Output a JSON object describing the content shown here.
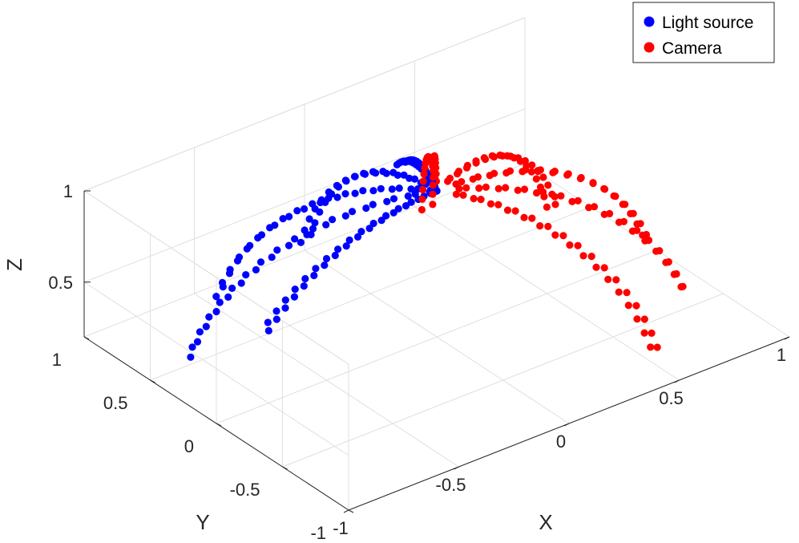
{
  "chart_data": {
    "type": "scatter",
    "projection": "3d",
    "xlabel": "X",
    "ylabel": "Y",
    "zlabel": "Z",
    "xlim": [
      -1,
      1
    ],
    "ylim": [
      -1,
      1
    ],
    "zlim": [
      0.2,
      1
    ],
    "xticks": [
      "-1",
      "-0.5",
      "0",
      "0.5",
      "1"
    ],
    "yticks": [
      "-1",
      "-0.5",
      "0",
      "0.5",
      "1"
    ],
    "zticks": [
      "0.5",
      "1"
    ],
    "grid": true,
    "legend_position": "top-right",
    "series": [
      {
        "name": "Light source",
        "color": "#0000ff",
        "description": "points on upper hemisphere, Y >= 0 side, Z from about 0.3 to 1",
        "arcs": [
          {
            "phi": 90,
            "theta_range": [
              0,
              72
            ]
          },
          {
            "phi": 120,
            "theta_range": [
              0,
              72
            ]
          },
          {
            "phi": 150,
            "theta_range": [
              0,
              72
            ]
          },
          {
            "phi": 70,
            "theta_range": [
              0,
              40
            ]
          },
          {
            "phi": 180,
            "theta_range": [
              0,
              50
            ]
          }
        ]
      },
      {
        "name": "Camera",
        "color": "#ff0000",
        "description": "points on upper hemisphere, X >= 0 side, Z from about 0.3 to 1",
        "arcs": [
          {
            "phi": 0,
            "theta_range": [
              5,
              72
            ]
          },
          {
            "phi": 30,
            "theta_range": [
              5,
              72
            ]
          },
          {
            "phi": 60,
            "theta_range": [
              5,
              72
            ]
          },
          {
            "phi": -30,
            "theta_range": [
              5,
              72
            ]
          },
          {
            "phi": -60,
            "theta_range": [
              5,
              72
            ]
          }
        ]
      }
    ]
  }
}
